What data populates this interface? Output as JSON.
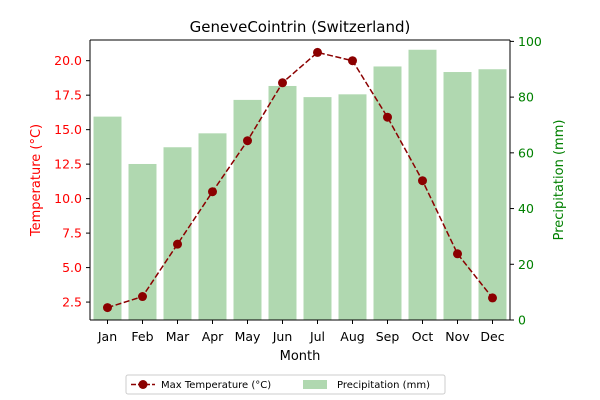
{
  "chart_data": {
    "type": "bar+line",
    "title": "GeneveCointrin (Switzerland)",
    "xlabel": "Month",
    "ylabel_left": "Temperature (°C)",
    "ylabel_right": "Precipitation (mm)",
    "categories": [
      "Jan",
      "Feb",
      "Mar",
      "Apr",
      "May",
      "Jun",
      "Jul",
      "Aug",
      "Sep",
      "Oct",
      "Nov",
      "Dec"
    ],
    "ylim_left": [
      1.2,
      21.5
    ],
    "yticks_left": [
      2.5,
      5.0,
      7.5,
      10.0,
      12.5,
      15.0,
      17.5,
      20.0
    ],
    "yticklabels_left": [
      "2.5",
      "5.0",
      "7.5",
      "10.0",
      "12.5",
      "15.0",
      "17.5",
      "20.0"
    ],
    "ylim_right": [
      0,
      100.5
    ],
    "yticks_right": [
      0,
      20,
      40,
      60,
      80,
      100
    ],
    "yticklabels_right": [
      "0",
      "20",
      "40",
      "60",
      "80",
      "100"
    ],
    "grid": false,
    "legend_placement": "bottom-center",
    "series": [
      {
        "name": "Max Temperature (°C)",
        "type": "line",
        "axis": "left",
        "color": "#8b0000",
        "values": [
          2.1,
          2.9,
          6.7,
          10.5,
          14.2,
          18.4,
          20.6,
          20.0,
          15.9,
          11.3,
          6.0,
          2.8
        ]
      },
      {
        "name": "Precipitation (mm)",
        "type": "bar",
        "axis": "right",
        "color": "#b0d8b0",
        "values": [
          73,
          56,
          62,
          67,
          79,
          84,
          80,
          81,
          91,
          97,
          89,
          90
        ]
      }
    ],
    "colors": {
      "left_axis": "#ff0000",
      "right_axis": "#008000",
      "text": "#000000"
    }
  }
}
